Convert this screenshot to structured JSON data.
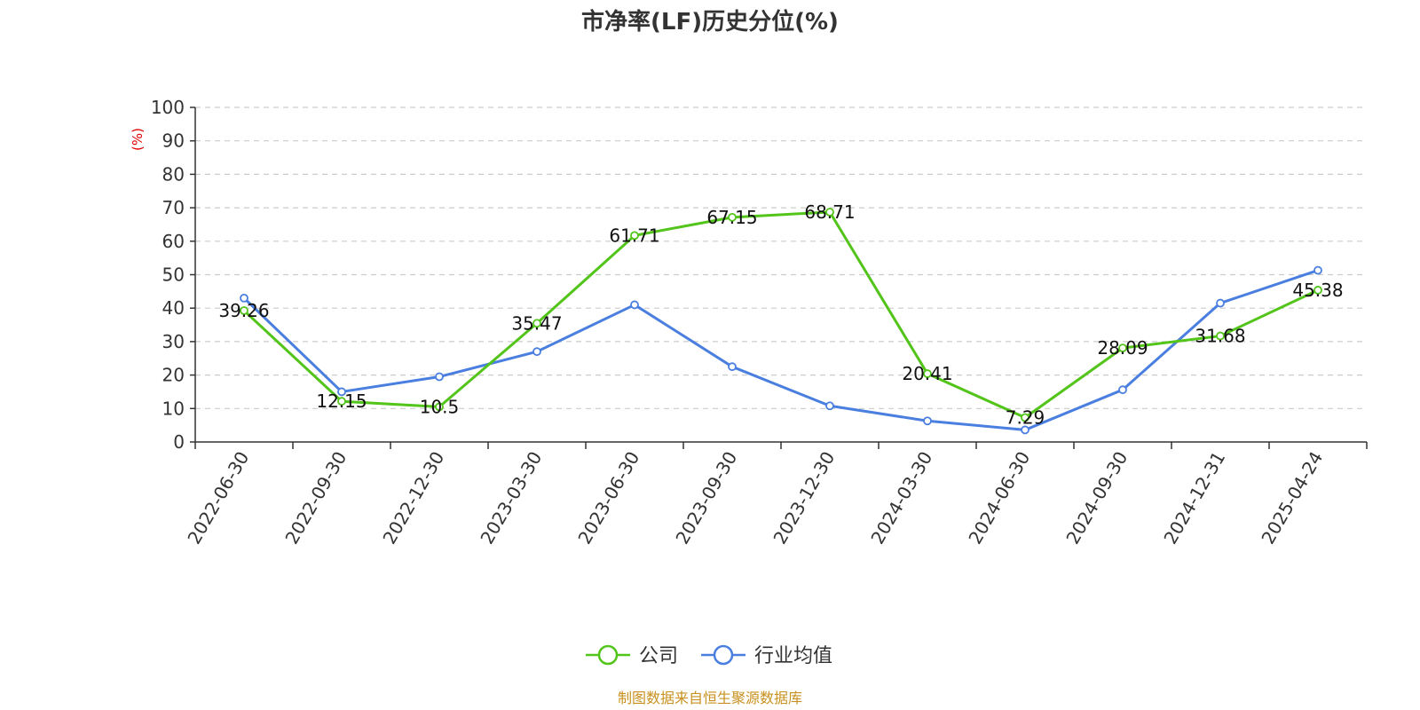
{
  "chart_data": {
    "type": "line",
    "title": "市净率(LF)历史分位(%)",
    "ylabel": "(%)",
    "ylim": [
      0,
      100
    ],
    "yticks": [
      0,
      10,
      20,
      30,
      40,
      50,
      60,
      70,
      80,
      90,
      100
    ],
    "grid": true,
    "legend_position": "bottom-center",
    "categories": [
      "2022-06-30",
      "2022-09-30",
      "2022-12-30",
      "2023-03-30",
      "2023-06-30",
      "2023-09-30",
      "2023-12-30",
      "2024-03-30",
      "2024-06-30",
      "2024-09-30",
      "2024-12-31",
      "2025-04-24"
    ],
    "series": [
      {
        "name": "公司",
        "color": "#52c41a",
        "values": [
          39.26,
          12.15,
          10.5,
          35.47,
          61.71,
          67.15,
          68.71,
          20.41,
          7.29,
          28.09,
          31.68,
          45.38
        ],
        "labels": [
          "39.26",
          "12.15",
          "10.5",
          "35.47",
          "61.71",
          "67.15",
          "68.71",
          "20.41",
          "7.29",
          "28.09",
          "31.68",
          "45.38"
        ]
      },
      {
        "name": "行业均值",
        "color": "#4a7fe0",
        "values": [
          43.0,
          15.0,
          19.5,
          27.0,
          41.0,
          22.5,
          10.8,
          6.3,
          3.6,
          15.6,
          41.5,
          51.3
        ]
      }
    ]
  },
  "source": {
    "text": "制图数据来自恒生聚源数据库",
    "color": "#c8901e"
  }
}
